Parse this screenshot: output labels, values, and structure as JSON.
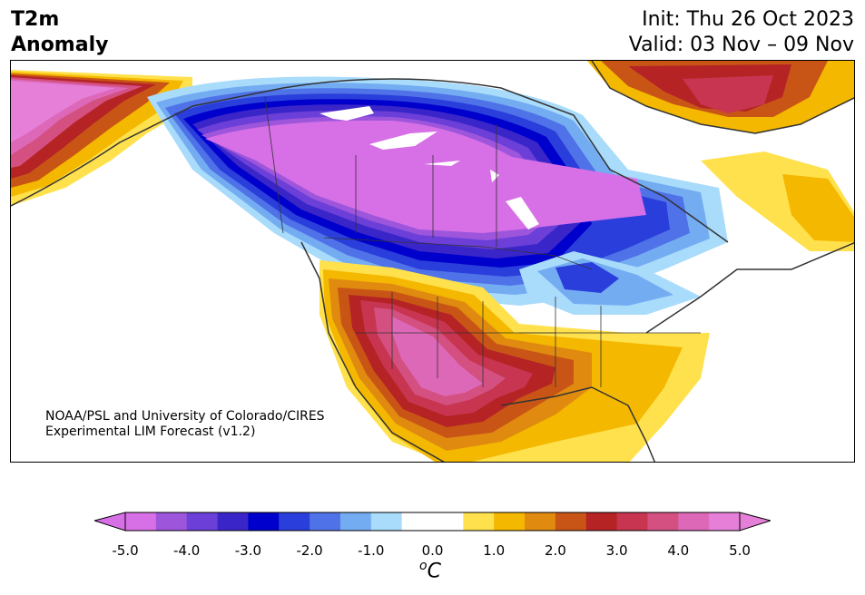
{
  "title": {
    "line1": "T2m",
    "line2": "Anomaly",
    "init": "Init: Thu 26 Oct 2023",
    "valid": "Valid: 03 Nov – 09 Nov"
  },
  "credit": {
    "line1": "NOAA/PSL and University of Colorado/CIRES",
    "line2": "Experimental LIM Forecast (v1.2)"
  },
  "legend": {
    "unit_symbol": "o",
    "unit_letter": "C",
    "ticks": [
      "-5.0",
      "-4.0",
      "-3.0",
      "-2.0",
      "-1.0",
      "0.0",
      "1.0",
      "2.0",
      "3.0",
      "4.0",
      "5.0"
    ],
    "colors": [
      "#d76fe6",
      "#9d55dc",
      "#6b3fd8",
      "#3a26c8",
      "#0000cc",
      "#2a3edb",
      "#4f72e8",
      "#74acf2",
      "#a9dbfb",
      "#ffffff",
      "#ffffff",
      "#ffe14d",
      "#f4b800",
      "#e08a10",
      "#c85515",
      "#b52325",
      "#c73550",
      "#d35080",
      "#dd68b8",
      "#e67fd8"
    ],
    "extend_low": "#d76fe6",
    "extend_high": "#e67fd8"
  },
  "map": {
    "region": "North America",
    "anomaly_areas": [
      {
        "name": "Canada interior",
        "anomaly": "-5.0"
      },
      {
        "name": "Great Lakes / Northeast US",
        "anomaly": "-1.0"
      },
      {
        "name": "Alaska west",
        "anomaly": "5.0"
      },
      {
        "name": "US Southwest / Texas",
        "anomaly": "4.5"
      },
      {
        "name": "Greenland",
        "anomaly": "3.5"
      },
      {
        "name": "Southeast US",
        "anomaly": "1.5"
      }
    ]
  }
}
